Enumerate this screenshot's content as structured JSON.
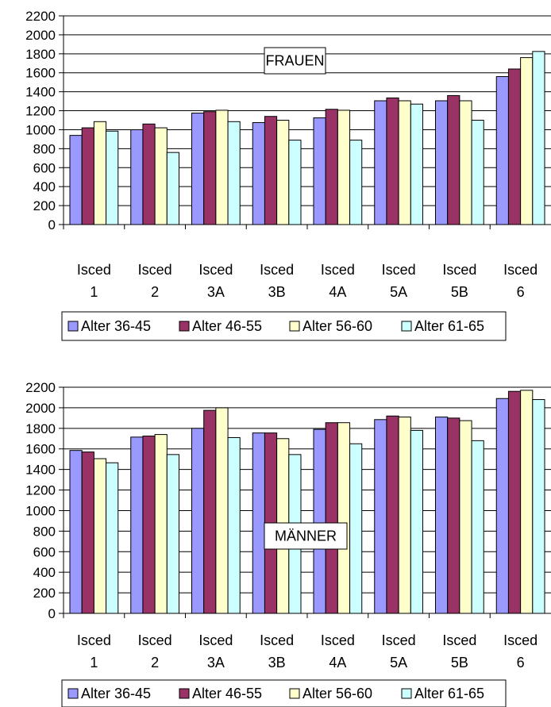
{
  "legend": [
    {
      "label": "Alter 36-45",
      "color": "#9999ff"
    },
    {
      "label": "Alter 46-55",
      "color": "#993366"
    },
    {
      "label": "Alter 56-60",
      "color": "#ffffcc"
    },
    {
      "label": "Alter 61-65",
      "color": "#ccffff"
    }
  ],
  "chart_data": [
    {
      "type": "bar",
      "annotation": "FRAUEN",
      "categories": [
        [
          "Isced",
          "1"
        ],
        [
          "Isced",
          "2"
        ],
        [
          "Isced",
          "3A"
        ],
        [
          "Isced",
          "3B"
        ],
        [
          "Isced",
          "4A"
        ],
        [
          "Isced",
          "5A"
        ],
        [
          "Isced",
          "5B"
        ],
        [
          "Isced",
          "6"
        ]
      ],
      "yticks": [
        "0",
        "200",
        "400",
        "600",
        "800",
        "1000",
        "1200",
        "1400",
        "1600",
        "1800",
        "2000",
        "2200"
      ],
      "ylim": [
        0,
        2200
      ],
      "grid": true,
      "legend_position": "bottom",
      "series": [
        {
          "name": "Alter 36-45",
          "values": [
            940,
            1000,
            1175,
            1075,
            1125,
            1305,
            1305,
            1560
          ]
        },
        {
          "name": "Alter 46-55",
          "values": [
            1020,
            1060,
            1190,
            1140,
            1215,
            1335,
            1360,
            1640
          ]
        },
        {
          "name": "Alter 56-60",
          "values": [
            1085,
            1020,
            1205,
            1100,
            1205,
            1305,
            1305,
            1760
          ]
        },
        {
          "name": "Alter 61-65",
          "values": [
            985,
            760,
            1085,
            890,
            890,
            1270,
            1100,
            1825
          ]
        }
      ]
    },
    {
      "type": "bar",
      "annotation": "MÄNNER",
      "categories": [
        [
          "Isced",
          "1"
        ],
        [
          "Isced",
          "2"
        ],
        [
          "Isced",
          "3A"
        ],
        [
          "Isced",
          "3B"
        ],
        [
          "Isced",
          "4A"
        ],
        [
          "Isced",
          "5A"
        ],
        [
          "Isced",
          "5B"
        ],
        [
          "Isced",
          "6"
        ]
      ],
      "yticks": [
        "0",
        "200",
        "400",
        "600",
        "800",
        "1000",
        "1200",
        "1400",
        "1600",
        "1800",
        "2000",
        "2200"
      ],
      "ylim": [
        0,
        2200
      ],
      "grid": true,
      "legend_position": "bottom",
      "series": [
        {
          "name": "Alter 36-45",
          "values": [
            1585,
            1715,
            1800,
            1755,
            1790,
            1885,
            1910,
            2090
          ]
        },
        {
          "name": "Alter 46-55",
          "values": [
            1570,
            1725,
            1975,
            1755,
            1855,
            1920,
            1900,
            2160
          ]
        },
        {
          "name": "Alter 56-60",
          "values": [
            1505,
            1740,
            2000,
            1700,
            1855,
            1910,
            1875,
            2170
          ]
        },
        {
          "name": "Alter 61-65",
          "values": [
            1465,
            1545,
            1710,
            1545,
            1650,
            1780,
            1680,
            2080
          ]
        }
      ]
    }
  ]
}
